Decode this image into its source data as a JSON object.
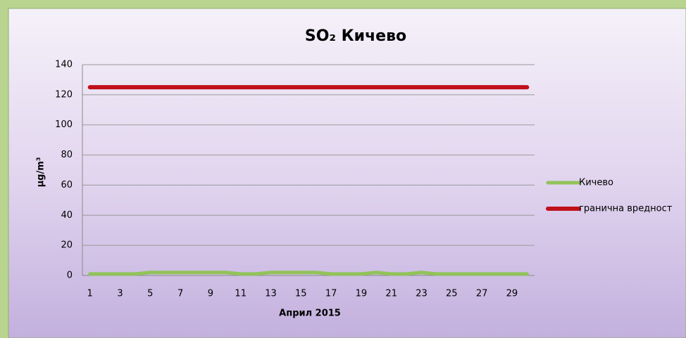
{
  "chart_data": {
    "type": "line",
    "title": "SO₂ Кичево",
    "xlabel": "Април 2015",
    "ylabel": "µg/m³",
    "categories": [
      1,
      null,
      3,
      null,
      5,
      null,
      7,
      null,
      9,
      null,
      11,
      null,
      13,
      null,
      15,
      null,
      17,
      null,
      19,
      null,
      21,
      null,
      23,
      null,
      25,
      null,
      27,
      null,
      29,
      null
    ],
    "series": [
      {
        "name": "Кичево",
        "color": "#92c35a",
        "values": [
          1,
          1,
          1,
          1,
          2,
          2,
          2,
          2,
          2,
          2,
          1,
          1,
          2,
          2,
          2,
          2,
          1,
          1,
          1,
          2,
          1,
          1,
          2,
          1,
          1,
          1,
          1,
          1,
          1,
          1
        ]
      },
      {
        "name": "гранична вредност",
        "color": "#c0101a",
        "values": [
          125,
          125,
          125,
          125,
          125,
          125,
          125,
          125,
          125,
          125,
          125,
          125,
          125,
          125,
          125,
          125,
          125,
          125,
          125,
          125,
          125,
          125,
          125,
          125,
          125,
          125,
          125,
          125,
          125,
          125
        ]
      }
    ],
    "ylim": [
      0,
      140
    ],
    "yticks": [
      0,
      20,
      40,
      60,
      80,
      100,
      120,
      140
    ],
    "grid": true,
    "legend": "right"
  }
}
